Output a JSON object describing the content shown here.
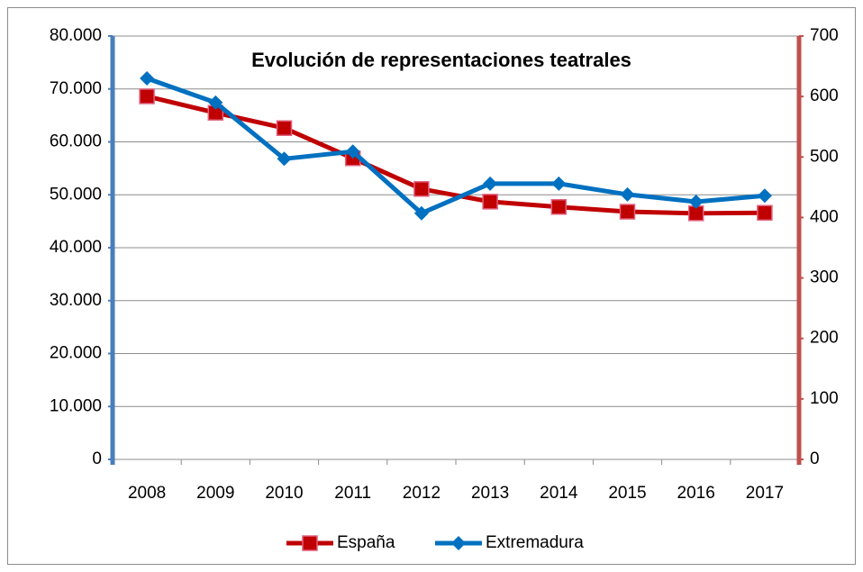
{
  "chart_data": {
    "type": "line",
    "title": "Evolución de representaciones teatrales",
    "categories": [
      "2008",
      "2009",
      "2010",
      "2011",
      "2012",
      "2013",
      "2014",
      "2015",
      "2016",
      "2017"
    ],
    "series": [
      {
        "name": "España",
        "color": "#c00000",
        "marker": "square",
        "values": [
          68600,
          65500,
          62600,
          56900,
          51100,
          48700,
          47700,
          46800,
          46500,
          46600
        ]
      },
      {
        "name": "Extremadura",
        "color": "#0070c0",
        "marker": "diamond",
        "axis": "y2",
        "values": [
          630,
          590,
          497,
          509,
          407,
          456,
          456,
          438,
          426,
          436
        ]
      }
    ],
    "ylim": [
      0,
      80000
    ],
    "yticks": [
      0,
      {
        "value": 10000,
        "label": "10.000"
      },
      {
        "value": 20000,
        "label": "20.000"
      },
      {
        "value": 30000,
        "label": "30.000"
      },
      {
        "value": 40000,
        "label": "40.000"
      },
      {
        "value": 50000,
        "label": "50.000"
      },
      {
        "value": 60000,
        "label": "60.000"
      },
      {
        "value": 70000,
        "label": "70.000"
      },
      {
        "value": 80000,
        "label": "80.000"
      }
    ],
    "y2lim": [
      0,
      700
    ],
    "y2ticks": [
      0,
      100,
      200,
      300,
      400,
      500,
      600,
      700
    ],
    "yaxis_color": "#4a7ebb",
    "y2axis_color": "#c0504d",
    "grid": true,
    "legend": "bottom"
  }
}
